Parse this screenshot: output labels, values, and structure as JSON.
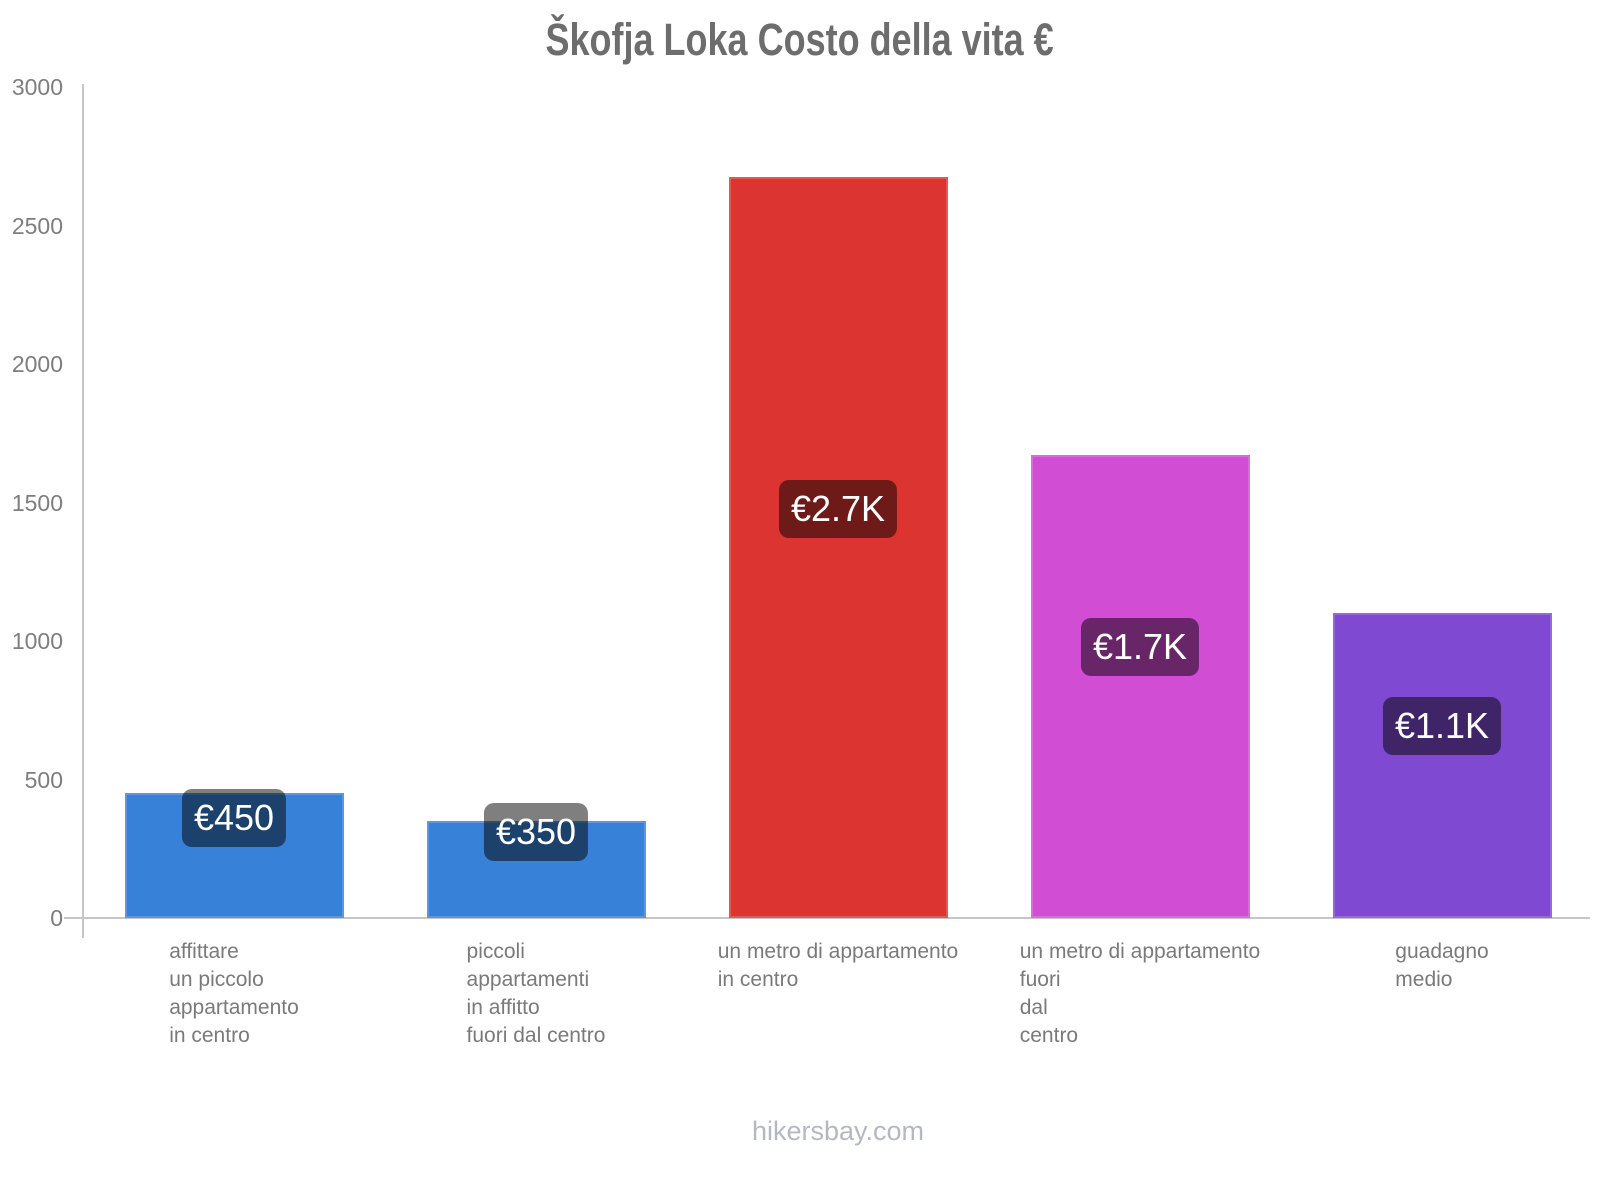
{
  "title": "Škofja Loka Costo della vita €",
  "footer": "hikersbay.com",
  "chart_data": {
    "type": "bar",
    "title": "Škofja Loka Costo della vita €",
    "xlabel": "",
    "ylabel": "",
    "ylim": [
      0,
      3000
    ],
    "yticks": [
      0,
      500,
      1000,
      1500,
      2000,
      2500,
      3000
    ],
    "grid": "off",
    "legend": "none",
    "categories": [
      [
        "affittare",
        "un piccolo",
        "appartamento",
        "in centro"
      ],
      [
        "piccoli",
        "appartamenti",
        "in affitto",
        "fuori dal centro"
      ],
      [
        "un metro di appartamento",
        "in centro"
      ],
      [
        "un metro di appartamento",
        "fuori",
        "dal",
        "centro"
      ],
      [
        "guadagno",
        "medio"
      ]
    ],
    "values": [
      450,
      350,
      2675,
      1670,
      1100
    ],
    "value_labels": [
      "€450",
      "€350",
      "€2.7K",
      "€1.7K",
      "€1.1K"
    ],
    "bar_colors": [
      "#3782d8",
      "#3782d8",
      "#dc3430",
      "#d14dd3",
      "#7f49d1"
    ],
    "badge_background": "rgba(0,0,0,0.5)",
    "badge_text_color": "#ffffff",
    "axis_color": "#c6c6c6",
    "tick_label_color": "#7e7e7e",
    "category_label_color": "#7a7a7a",
    "title_color": "#6d6d6d",
    "footer_color": "#b4b8c0"
  }
}
